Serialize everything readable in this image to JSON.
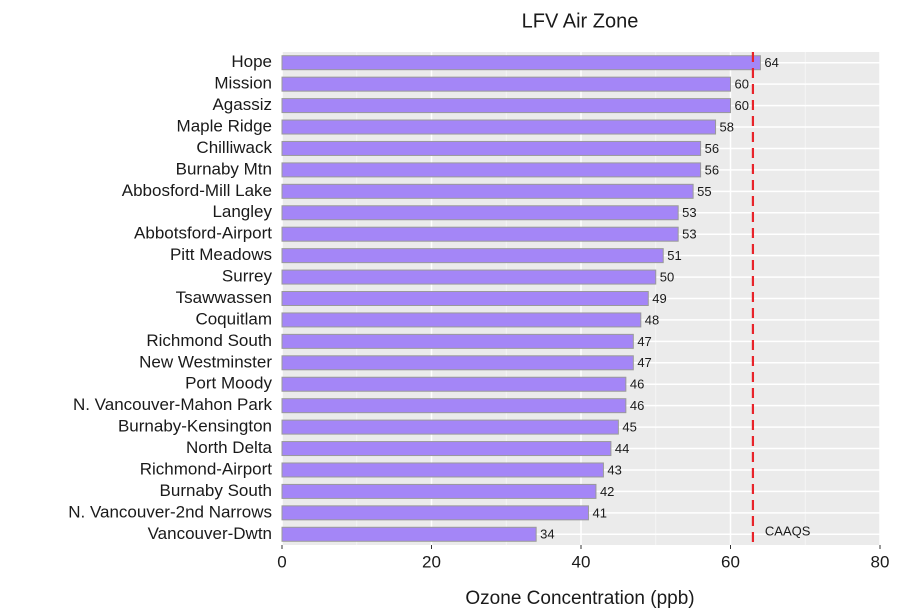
{
  "chart_data": {
    "type": "barh",
    "title": "LFV Air Zone",
    "x_label": "Ozone Concentration (ppb)",
    "categories": [
      "Hope",
      "Mission",
      "Agassiz",
      "Maple Ridge",
      "Chilliwack",
      "Burnaby Mtn",
      "Abbosford-Mill Lake",
      "Langley",
      "Abbotsford-Airport",
      "Pitt Meadows",
      "Surrey",
      "Tsawwassen",
      "Coquitlam",
      "Richmond South",
      "New Westminster",
      "Port Moody",
      "N. Vancouver-Mahon Park",
      "Burnaby-Kensington",
      "North Delta",
      "Richmond-Airport",
      "Burnaby South",
      "N. Vancouver-2nd Narrows",
      "Vancouver-Dwtn"
    ],
    "values": [
      64,
      60,
      60,
      58,
      56,
      56,
      55,
      53,
      53,
      51,
      50,
      49,
      48,
      47,
      47,
      46,
      46,
      45,
      44,
      43,
      42,
      41,
      34
    ],
    "color": "#a486f7",
    "xlim": [
      0,
      80
    ],
    "xticks": [
      0,
      20,
      40,
      60,
      80
    ],
    "minor_xticks": [
      10,
      30,
      50,
      70
    ],
    "grid": true,
    "reference_line": {
      "value": 63,
      "label": "CAAQS",
      "color": "#e8232a"
    }
  }
}
